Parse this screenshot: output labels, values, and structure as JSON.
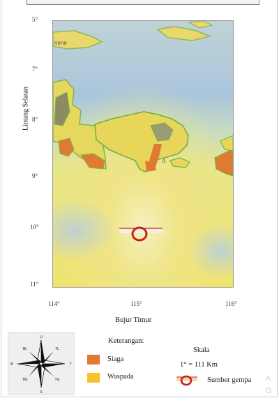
{
  "axes": {
    "ylabel": "Lintang Selatan",
    "xlabel": "Bujur Timur",
    "lat_ticks": [
      "5°",
      "7°",
      "8°",
      "9°",
      "10°",
      "11°"
    ],
    "lon_ticks": [
      "114°",
      "115°",
      "116°"
    ]
  },
  "map_labels": {
    "top_left": "nene",
    "near_bali": "A"
  },
  "legend": {
    "title": "Keterangan:",
    "items": [
      {
        "label": "Siaga",
        "color": "#e07a33"
      },
      {
        "label": "Waspada",
        "color": "#f7c22a"
      }
    ]
  },
  "scale": {
    "title": "Skala",
    "value": "1° = 111 Km"
  },
  "source": {
    "label": "Sumber gempa",
    "color": "#c0241f"
  },
  "compass": {
    "N": "U",
    "S": "S",
    "E": "T",
    "W": "B",
    "NE": "TL",
    "NW": "BL",
    "SE": "TG",
    "SW": "BD"
  },
  "watermark": [
    "A",
    "G"
  ]
}
